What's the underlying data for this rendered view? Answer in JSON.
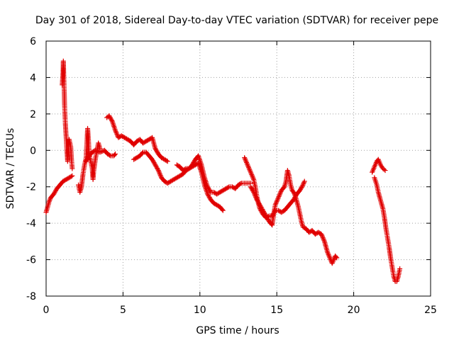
{
  "chart_data": {
    "type": "scatter",
    "title": "Day 301 of 2018, Sidereal Day-to-day VTEC variation (SDTVAR) for receiver pepe",
    "xlabel": "GPS time / hours",
    "ylabel": "SDTVAR / TECUs",
    "xlim": [
      0,
      25
    ],
    "ylim": [
      -8,
      6
    ],
    "x_ticks": [
      0,
      5,
      10,
      15,
      20,
      25
    ],
    "y_ticks": [
      -8,
      -6,
      -4,
      -2,
      0,
      2,
      4,
      6
    ],
    "x_tick_labels": [
      "0",
      "5",
      "10",
      "15",
      "20",
      "25"
    ],
    "y_tick_labels": [
      "-8",
      "-6",
      "-4",
      "-2",
      "0",
      "2",
      "4",
      "6"
    ],
    "grid": true,
    "marker": "+",
    "color": "#e00000",
    "series": [
      {
        "name": "SDTVAR",
        "segments": [
          [
            [
              0.0,
              -3.4
            ],
            [
              0.1,
              -3.1
            ],
            [
              0.2,
              -2.8
            ],
            [
              0.3,
              -2.6
            ],
            [
              0.5,
              -2.4
            ],
            [
              0.7,
              -2.1
            ],
            [
              0.9,
              -1.9
            ],
            [
              1.1,
              -1.7
            ],
            [
              1.3,
              -1.6
            ],
            [
              1.5,
              -1.5
            ],
            [
              1.7,
              -1.4
            ]
          ],
          [
            [
              1.05,
              3.6
            ],
            [
              1.1,
              4.3
            ],
            [
              1.12,
              4.9
            ],
            [
              1.15,
              4.1
            ],
            [
              1.18,
              3.2
            ],
            [
              1.2,
              2.5
            ],
            [
              1.25,
              1.5
            ],
            [
              1.3,
              0.8
            ],
            [
              1.35,
              0.0
            ],
            [
              1.4,
              -0.6
            ],
            [
              1.5,
              0.6
            ],
            [
              1.6,
              0.2
            ],
            [
              1.65,
              -0.5
            ],
            [
              1.7,
              -1.0
            ]
          ],
          [
            [
              2.1,
              -1.9
            ],
            [
              2.2,
              -2.3
            ],
            [
              2.3,
              -2.0
            ],
            [
              2.4,
              -1.3
            ],
            [
              2.5,
              -0.8
            ],
            [
              2.6,
              -0.4
            ],
            [
              2.65,
              0.4
            ],
            [
              2.7,
              1.2
            ],
            [
              2.75,
              0.6
            ],
            [
              2.8,
              -0.2
            ],
            [
              2.9,
              -0.6
            ],
            [
              3.0,
              -1.0
            ],
            [
              3.05,
              -1.6
            ],
            [
              3.1,
              -1.1
            ],
            [
              3.2,
              -0.5
            ],
            [
              3.3,
              0.0
            ],
            [
              3.4,
              0.4
            ],
            [
              3.5,
              0.1
            ]
          ],
          [
            [
              2.6,
              -0.6
            ],
            [
              2.8,
              -0.3
            ],
            [
              3.0,
              -0.1
            ],
            [
              3.2,
              0.0
            ],
            [
              3.5,
              -0.1
            ],
            [
              3.8,
              0.0
            ],
            [
              4.0,
              -0.2
            ],
            [
              4.2,
              -0.3
            ],
            [
              4.4,
              -0.3
            ],
            [
              4.5,
              -0.2
            ]
          ],
          [
            [
              3.95,
              1.8
            ],
            [
              4.1,
              1.9
            ],
            [
              4.3,
              1.6
            ],
            [
              4.5,
              1.1
            ],
            [
              4.7,
              0.7
            ],
            [
              4.9,
              0.8
            ],
            [
              5.1,
              0.7
            ],
            [
              5.3,
              0.6
            ],
            [
              5.5,
              0.5
            ],
            [
              5.7,
              0.3
            ],
            [
              5.9,
              0.5
            ],
            [
              6.1,
              0.6
            ],
            [
              6.3,
              0.4
            ],
            [
              6.5,
              0.5
            ],
            [
              6.7,
              0.6
            ],
            [
              6.9,
              0.7
            ],
            [
              7.0,
              0.4
            ],
            [
              7.1,
              0.1
            ],
            [
              7.3,
              -0.2
            ],
            [
              7.5,
              -0.4
            ],
            [
              7.7,
              -0.5
            ],
            [
              7.9,
              -0.6
            ]
          ],
          [
            [
              5.7,
              -0.5
            ],
            [
              5.9,
              -0.4
            ],
            [
              6.1,
              -0.3
            ],
            [
              6.3,
              -0.1
            ],
            [
              6.5,
              -0.1
            ],
            [
              6.7,
              -0.3
            ],
            [
              6.9,
              -0.5
            ],
            [
              7.1,
              -0.8
            ],
            [
              7.3,
              -1.1
            ],
            [
              7.5,
              -1.5
            ],
            [
              7.7,
              -1.7
            ],
            [
              7.9,
              -1.8
            ],
            [
              8.1,
              -1.7
            ],
            [
              8.3,
              -1.6
            ],
            [
              8.5,
              -1.5
            ],
            [
              8.7,
              -1.4
            ],
            [
              8.9,
              -1.3
            ],
            [
              9.1,
              -1.1
            ],
            [
              9.3,
              -1.0
            ],
            [
              9.5,
              -0.8
            ],
            [
              9.7,
              -0.5
            ],
            [
              9.9,
              -0.3
            ],
            [
              10.1,
              -0.8
            ],
            [
              10.3,
              -1.5
            ],
            [
              10.5,
              -2.0
            ],
            [
              10.7,
              -2.3
            ],
            [
              10.9,
              -2.3
            ],
            [
              11.1,
              -2.4
            ],
            [
              11.3,
              -2.3
            ],
            [
              11.5,
              -2.2
            ],
            [
              11.7,
              -2.1
            ],
            [
              11.9,
              -2.0
            ],
            [
              12.1,
              -2.0
            ],
            [
              12.3,
              -2.1
            ],
            [
              12.5,
              -1.9
            ],
            [
              12.7,
              -1.8
            ],
            [
              12.9,
              -1.8
            ],
            [
              13.1,
              -1.8
            ],
            [
              13.3,
              -1.8
            ]
          ],
          [
            [
              8.5,
              -0.8
            ],
            [
              8.7,
              -0.9
            ],
            [
              8.9,
              -1.1
            ],
            [
              9.1,
              -1.0
            ],
            [
              9.3,
              -1.0
            ],
            [
              9.5,
              -0.9
            ],
            [
              9.7,
              -0.8
            ],
            [
              9.9,
              -0.7
            ],
            [
              10.1,
              -1.2
            ],
            [
              10.3,
              -1.9
            ],
            [
              10.5,
              -2.4
            ],
            [
              10.7,
              -2.7
            ],
            [
              10.9,
              -2.9
            ],
            [
              11.1,
              -3.0
            ],
            [
              11.3,
              -3.1
            ],
            [
              11.5,
              -3.3
            ]
          ],
          [
            [
              12.9,
              -0.4
            ],
            [
              13.1,
              -0.8
            ],
            [
              13.3,
              -1.2
            ],
            [
              13.5,
              -1.6
            ],
            [
              13.6,
              -2.0
            ],
            [
              13.7,
              -2.5
            ],
            [
              13.8,
              -2.9
            ],
            [
              13.9,
              -3.2
            ],
            [
              14.1,
              -3.5
            ],
            [
              14.3,
              -3.7
            ],
            [
              14.5,
              -3.6
            ],
            [
              14.7,
              -3.6
            ],
            [
              14.9,
              -3.3
            ],
            [
              15.1,
              -3.3
            ],
            [
              15.3,
              -3.4
            ],
            [
              15.5,
              -3.3
            ],
            [
              15.7,
              -3.1
            ],
            [
              15.9,
              -2.9
            ],
            [
              16.1,
              -2.7
            ],
            [
              16.3,
              -2.4
            ],
            [
              16.5,
              -2.2
            ],
            [
              16.7,
              -1.9
            ],
            [
              16.8,
              -1.7
            ]
          ],
          [
            [
              13.3,
              -2.0
            ],
            [
              13.5,
              -2.3
            ],
            [
              13.7,
              -2.7
            ],
            [
              13.9,
              -3.0
            ],
            [
              14.1,
              -3.3
            ],
            [
              14.3,
              -3.6
            ],
            [
              14.5,
              -3.9
            ],
            [
              14.7,
              -4.1
            ],
            [
              14.8,
              -3.5
            ],
            [
              14.9,
              -3.0
            ],
            [
              15.1,
              -2.6
            ],
            [
              15.3,
              -2.2
            ],
            [
              15.5,
              -2.0
            ],
            [
              15.6,
              -1.7
            ],
            [
              15.7,
              -1.1
            ],
            [
              15.8,
              -1.4
            ],
            [
              15.9,
              -1.9
            ],
            [
              16.0,
              -2.2
            ],
            [
              16.1,
              -2.3
            ],
            [
              16.2,
              -2.5
            ],
            [
              16.3,
              -2.8
            ],
            [
              16.4,
              -3.1
            ],
            [
              16.5,
              -3.5
            ],
            [
              16.6,
              -3.9
            ],
            [
              16.7,
              -4.2
            ],
            [
              16.9,
              -4.3
            ],
            [
              17.1,
              -4.5
            ],
            [
              17.3,
              -4.4
            ],
            [
              17.5,
              -4.6
            ],
            [
              17.7,
              -4.5
            ],
            [
              17.9,
              -4.6
            ],
            [
              18.1,
              -5.0
            ],
            [
              18.3,
              -5.6
            ],
            [
              18.5,
              -6.0
            ],
            [
              18.6,
              -6.2
            ],
            [
              18.7,
              -6.0
            ],
            [
              18.8,
              -5.8
            ],
            [
              18.9,
              -5.9
            ]
          ],
          [
            [
              21.2,
              -1.2
            ],
            [
              21.35,
              -0.9
            ],
            [
              21.5,
              -0.6
            ],
            [
              21.6,
              -0.5
            ],
            [
              21.75,
              -0.8
            ],
            [
              21.9,
              -1.0
            ],
            [
              22.05,
              -1.1
            ]
          ],
          [
            [
              21.35,
              -1.5
            ],
            [
              21.5,
              -1.9
            ],
            [
              21.6,
              -2.3
            ],
            [
              21.7,
              -2.6
            ],
            [
              21.8,
              -2.9
            ],
            [
              21.9,
              -3.2
            ],
            [
              22.0,
              -3.7
            ],
            [
              22.1,
              -4.3
            ],
            [
              22.2,
              -4.8
            ],
            [
              22.3,
              -5.3
            ],
            [
              22.4,
              -5.9
            ],
            [
              22.5,
              -6.4
            ],
            [
              22.6,
              -6.9
            ],
            [
              22.7,
              -7.2
            ],
            [
              22.8,
              -7.2
            ],
            [
              22.9,
              -6.9
            ],
            [
              23.0,
              -6.5
            ]
          ]
        ]
      }
    ]
  }
}
